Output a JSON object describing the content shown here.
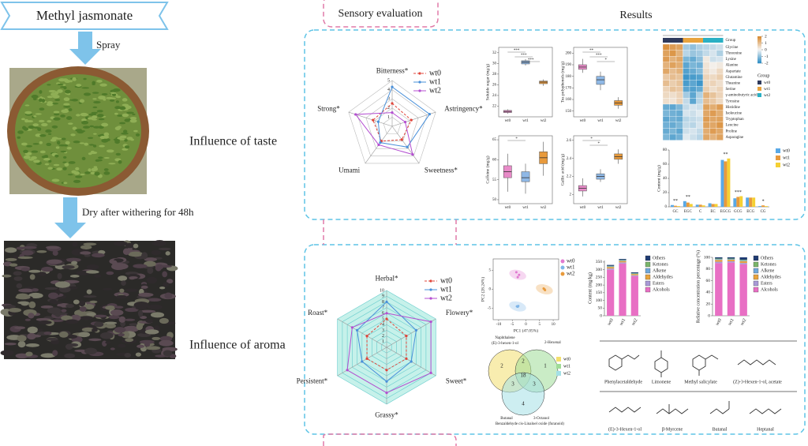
{
  "header": {
    "title": "Methyl jasmonate"
  },
  "steps": [
    "Spray",
    "Dry after withering for 48h"
  ],
  "sections": {
    "sensory": "Sensory evaluation",
    "results": "Results"
  },
  "rows": [
    "Influence of taste",
    "Influence of aroma"
  ],
  "chart_data": [
    {
      "type": "radar",
      "axes": [
        "Bitterness*",
        "Astringency*",
        "Sweetness*",
        "Umami",
        "Strong*"
      ],
      "rlim": [
        0,
        5
      ],
      "rticks": [
        1,
        2,
        3,
        4,
        5
      ],
      "series": [
        {
          "name": "wt0",
          "color": "#e0453a",
          "dashed": true,
          "values": [
            2.5,
            2.2,
            1.8,
            2.0,
            2.2
          ]
        },
        {
          "name": "wt1",
          "color": "#4a90d9",
          "dashed": false,
          "values": [
            4.3,
            4.3,
            2.8,
            2.2,
            1.6
          ]
        },
        {
          "name": "wt2",
          "color": "#b44fd1",
          "dashed": false,
          "values": [
            1.5,
            1.5,
            3.8,
            2.5,
            4.2
          ]
        }
      ]
    },
    {
      "type": "radar",
      "axes": [
        "Herbal*",
        "Flowery*",
        "Sweet*",
        "Grassy*",
        "Persistent*",
        "Roast*"
      ],
      "rlim": [
        0,
        10
      ],
      "rticks": [
        1,
        2,
        3,
        4,
        5,
        6,
        7,
        8,
        9,
        10
      ],
      "fill": "#c6f1ea",
      "series": [
        {
          "name": "wt0",
          "color": "#e0453a",
          "dashed": true,
          "values": [
            5,
            4,
            4,
            4,
            4,
            4
          ]
        },
        {
          "name": "wt1",
          "color": "#4a90d9",
          "dashed": false,
          "values": [
            8,
            6,
            5,
            6,
            5,
            6
          ]
        },
        {
          "name": "wt2",
          "color": "#b44fd1",
          "dashed": false,
          "values": [
            6,
            9,
            9,
            8,
            8,
            7
          ]
        }
      ]
    },
    {
      "type": "box",
      "ylabel": "Soluble sugar (mg/g)",
      "categories": [
        "wt0",
        "wt1",
        "wt2"
      ],
      "colors": [
        "#e88ac8",
        "#8fb8e6",
        "#e89a3c"
      ],
      "ylim": [
        20,
        33
      ],
      "yticks": [
        22,
        24,
        26,
        28,
        30,
        32
      ],
      "boxes": [
        [
          20.6,
          20.8,
          21.0,
          21.2,
          21.4
        ],
        [
          29.6,
          29.9,
          30.2,
          30.5,
          30.8
        ],
        [
          25.8,
          26.2,
          26.5,
          26.7,
          27.0
        ]
      ],
      "annotations": [
        "***",
        "***",
        "***"
      ]
    },
    {
      "type": "box",
      "ylabel": "Tea polyphenols (mg/g)",
      "categories": [
        "wt0",
        "wt1",
        "wt2"
      ],
      "colors": [
        "#e88ac8",
        "#8fb8e6",
        "#e89a3c"
      ],
      "ylim": [
        145,
        205
      ],
      "yticks": [
        150,
        160,
        170,
        180,
        190,
        200
      ],
      "boxes": [
        [
          183,
          186,
          188,
          190,
          195
        ],
        [
          168,
          173,
          177,
          180,
          184
        ],
        [
          152,
          155,
          157,
          159,
          162
        ]
      ],
      "annotations": [
        "**",
        "***",
        "*"
      ]
    },
    {
      "type": "box",
      "ylabel": "Caffeine (mg/g)",
      "categories": [
        "wt0",
        "wt1",
        "wt2"
      ],
      "colors": [
        "#e88ac8",
        "#8fb8e6",
        "#e89a3c"
      ],
      "ylim": [
        49,
        66
      ],
      "yticks": [
        50,
        55,
        60,
        65
      ],
      "boxes": [
        [
          52,
          55.5,
          57,
          58.5,
          61.5
        ],
        [
          51.5,
          54.5,
          55.5,
          57,
          59
        ],
        [
          56,
          59,
          60.5,
          62,
          64.5
        ]
      ],
      "annotations": [
        "*"
      ]
    },
    {
      "type": "box",
      "ylabel": "Gallic acid (mg/g)",
      "categories": [
        "wt0",
        "wt1",
        "wt2"
      ],
      "colors": [
        "#e88ac8",
        "#8fb8e6",
        "#e89a3c"
      ],
      "ylim": [
        1.9,
        2.65
      ],
      "yticks": [
        2,
        2.2,
        2.4,
        2.6
      ],
      "boxes": [
        [
          1.98,
          2.04,
          2.07,
          2.1,
          2.18
        ],
        [
          2.14,
          2.17,
          2.2,
          2.23,
          2.28
        ],
        [
          2.34,
          2.39,
          2.42,
          2.45,
          2.5
        ]
      ],
      "annotations": [
        "*",
        "*"
      ]
    },
    {
      "type": "heatmap",
      "group_label": "Group",
      "rows": [
        "Glycine",
        "Threonine",
        "Lysine",
        "Alanine",
        "Aspartate",
        "Glutamine",
        "Theanine",
        "Serine",
        "γ-aminobutyric acid",
        "Tyrosine",
        "Histidine",
        "Isoleucine",
        "Tryptophan",
        "Leucine",
        "Proline",
        "Asparagine"
      ],
      "groups": [
        {
          "name": "wt0",
          "color": "#2f3a5c"
        },
        {
          "name": "wt1",
          "color": "#e8a33d"
        },
        {
          "name": "wt2",
          "color": "#2ab0c4"
        }
      ],
      "clim": [
        -2,
        2
      ],
      "cticks": [
        2,
        1,
        0,
        -1,
        -2
      ],
      "low_color": "#2b8cc4",
      "mid_color": "#f4f4f4",
      "high_color": "#d8862b",
      "values": [
        [
          1.8,
          1.6,
          1.5,
          -0.8,
          -1,
          -0.7,
          -0.6,
          -0.5,
          -0.4
        ],
        [
          1.5,
          1.7,
          1.2,
          -0.6,
          -0.9,
          -0.8,
          -0.5,
          -0.3,
          -0.7
        ],
        [
          1.6,
          1.2,
          1.4,
          -1.2,
          -1.4,
          -1,
          0.2,
          -0.4,
          -0.3
        ],
        [
          1.2,
          1.5,
          1.3,
          -1.5,
          -1.2,
          -1.3,
          0.3,
          0.1,
          0.2
        ],
        [
          1.4,
          1,
          1.2,
          -1.6,
          -1.4,
          -1.1,
          0.4,
          0.2,
          0.5
        ],
        [
          0.8,
          1,
          0.9,
          -1.8,
          -1.7,
          -1.6,
          0.6,
          0.5,
          0.7
        ],
        [
          1,
          0.7,
          0.9,
          -1.7,
          -1.5,
          -1.8,
          0.5,
          0.6,
          0.4
        ],
        [
          0.6,
          0.9,
          0.8,
          -1.5,
          -1.6,
          -1.4,
          0.7,
          0.4,
          0.6
        ],
        [
          0.5,
          0.4,
          0.6,
          -0.8,
          -1.5,
          -0.7,
          1.2,
          0.9,
          0.6
        ],
        [
          0.4,
          0.3,
          0.6,
          -0.5,
          -1.5,
          -0.6,
          1,
          0.8,
          0.5
        ],
        [
          -1.4,
          -1.5,
          -1.2,
          -0.5,
          -0.3,
          -0.4,
          1.5,
          1.3,
          1.6
        ],
        [
          -1.2,
          -1.3,
          -1.4,
          -0.3,
          -0.4,
          -0.2,
          1.4,
          1.6,
          1.3
        ],
        [
          -1.5,
          -1.3,
          -1.4,
          -0.6,
          -0.5,
          -0.4,
          1.6,
          1.4,
          1.5
        ],
        [
          -1.3,
          -1.4,
          -1.2,
          -0.5,
          -0.6,
          -0.3,
          1.5,
          1.4,
          1.7
        ],
        [
          -1.4,
          -1.2,
          -1.5,
          -0.4,
          -0.3,
          -0.5,
          1.3,
          1.6,
          1.4
        ],
        [
          -1.2,
          -1.5,
          -1.3,
          -0.2,
          -0.4,
          -0.6,
          1.4,
          1.2,
          1.5
        ]
      ]
    },
    {
      "type": "bar",
      "ylabel": "Content (mg/g)",
      "categories": [
        "GC",
        "EGC",
        "C",
        "EC",
        "EGCG",
        "GCG",
        "ECG",
        "CG"
      ],
      "ylim": [
        0,
        80
      ],
      "yticks": [
        0,
        20,
        40,
        60,
        80
      ],
      "series": [
        {
          "name": "wt0",
          "color": "#5aa9e6",
          "values": [
            2.5,
            8,
            3,
            5,
            66,
            12,
            13,
            1
          ]
        },
        {
          "name": "wt1",
          "color": "#e89a3c",
          "values": [
            1.5,
            6,
            3,
            4,
            64,
            14,
            13,
            2
          ]
        },
        {
          "name": "wt2",
          "color": "#f5d033",
          "values": [
            1,
            4,
            2,
            4,
            68,
            15,
            13,
            1
          ]
        }
      ],
      "annotations": [
        {
          "category": "GC",
          "text": "**"
        },
        {
          "category": "EGC",
          "text": "**"
        },
        {
          "category": "EGCG",
          "text": "**"
        },
        {
          "category": "GCG",
          "text": "***"
        },
        {
          "category": "CG",
          "text": "*"
        }
      ]
    },
    {
      "type": "scatter",
      "xlabel": "PC1 (47.05%)",
      "ylabel": "PC2 (28.24%)",
      "xlim": [
        -12,
        12
      ],
      "xticks": [
        -10,
        -5,
        0,
        5,
        10
      ],
      "ylim": [
        -8,
        8
      ],
      "yticks": [
        -5,
        0,
        5
      ],
      "series": [
        {
          "name": "wt0",
          "color": "#e07ad0",
          "x": [
            -3.5,
            -2.5,
            -3
          ],
          "y": [
            4.5,
            3.8,
            3.2
          ]
        },
        {
          "name": "wt1",
          "color": "#7fb5e8",
          "x": [
            -3.3,
            -2.8,
            -3.0
          ],
          "y": [
            -4.5,
            -4.4,
            -4.6
          ]
        },
        {
          "name": "wt2",
          "color": "#e89a3c",
          "x": [
            6.5,
            7,
            6.8
          ],
          "y": [
            0.2,
            -0.2,
            0
          ]
        }
      ]
    },
    {
      "type": "stacked",
      "ylabel": "Content (mg/kg)",
      "categories": [
        "wt0",
        "wt1",
        "wt2"
      ],
      "ylim": [
        0,
        360
      ],
      "yticks": [
        0,
        50,
        100,
        150,
        200,
        250,
        300,
        350
      ],
      "series": [
        {
          "name": "Others",
          "color": "#1f3b73",
          "values": [
            6,
            6,
            5
          ]
        },
        {
          "name": "Ketones",
          "color": "#7ab56a",
          "values": [
            3,
            3,
            3
          ]
        },
        {
          "name": "Alkene",
          "color": "#6fa8dc",
          "values": [
            4,
            4,
            3
          ]
        },
        {
          "name": "Aldehydes",
          "color": "#e8a33d",
          "values": [
            10,
            9,
            8
          ]
        },
        {
          "name": "Esters",
          "color": "#a89ad6",
          "values": [
            8,
            8,
            6
          ]
        },
        {
          "name": "Alcohols",
          "color": "#e86fc4",
          "values": [
            300,
            340,
            258
          ]
        }
      ]
    },
    {
      "type": "stacked",
      "ylabel": "Relative concentration percentage (%)",
      "categories": [
        "wt0",
        "wt1",
        "wt2"
      ],
      "ylim": [
        0,
        100
      ],
      "yticks": [
        0,
        20,
        40,
        60,
        80,
        100
      ],
      "series": [
        {
          "name": "Others",
          "color": "#1f3b73",
          "values": [
            2,
            2,
            4.1
          ]
        },
        {
          "name": "Ketones",
          "color": "#7ab56a",
          "values": [
            1,
            0.9,
            1.1
          ]
        },
        {
          "name": "Alkene",
          "color": "#6fa8dc",
          "values": [
            1.3,
            1.2,
            1.2
          ]
        },
        {
          "name": "Aldehydes",
          "color": "#e8a33d",
          "values": [
            3.2,
            2.6,
            3.2
          ]
        },
        {
          "name": "Esters",
          "color": "#a89ad6",
          "values": [
            2.5,
            2.3,
            2.4
          ]
        },
        {
          "name": "Alcohols",
          "color": "#e86fc4",
          "values": [
            90,
            91,
            88
          ]
        }
      ]
    }
  ],
  "venn": {
    "sets": [
      {
        "name": "wt0",
        "color": "#f3df6e"
      },
      {
        "name": "wt1",
        "color": "#9fdc97"
      },
      {
        "name": "wt2",
        "color": "#a4e0e6"
      }
    ],
    "regions": [
      "2",
      "2",
      "1",
      "18",
      "3",
      "3",
      "4"
    ],
    "notes": [
      "Naphthalene",
      "(E)-3-hexen-1-ol",
      "2-Hexenal",
      "Butanal",
      "Benzaldehyde",
      "3-Octanol",
      "cis-Linaloel oxide (furanoid)"
    ]
  },
  "compounds": [
    "Phenylacetaldehyde",
    "Limonene",
    "Methyl salicylate",
    "(Z)-3-Hexen-1-ol, acetate",
    "(E)-3-Hexen-1-ol",
    "β-Myrcene",
    "Butanal",
    "Heptanal"
  ]
}
